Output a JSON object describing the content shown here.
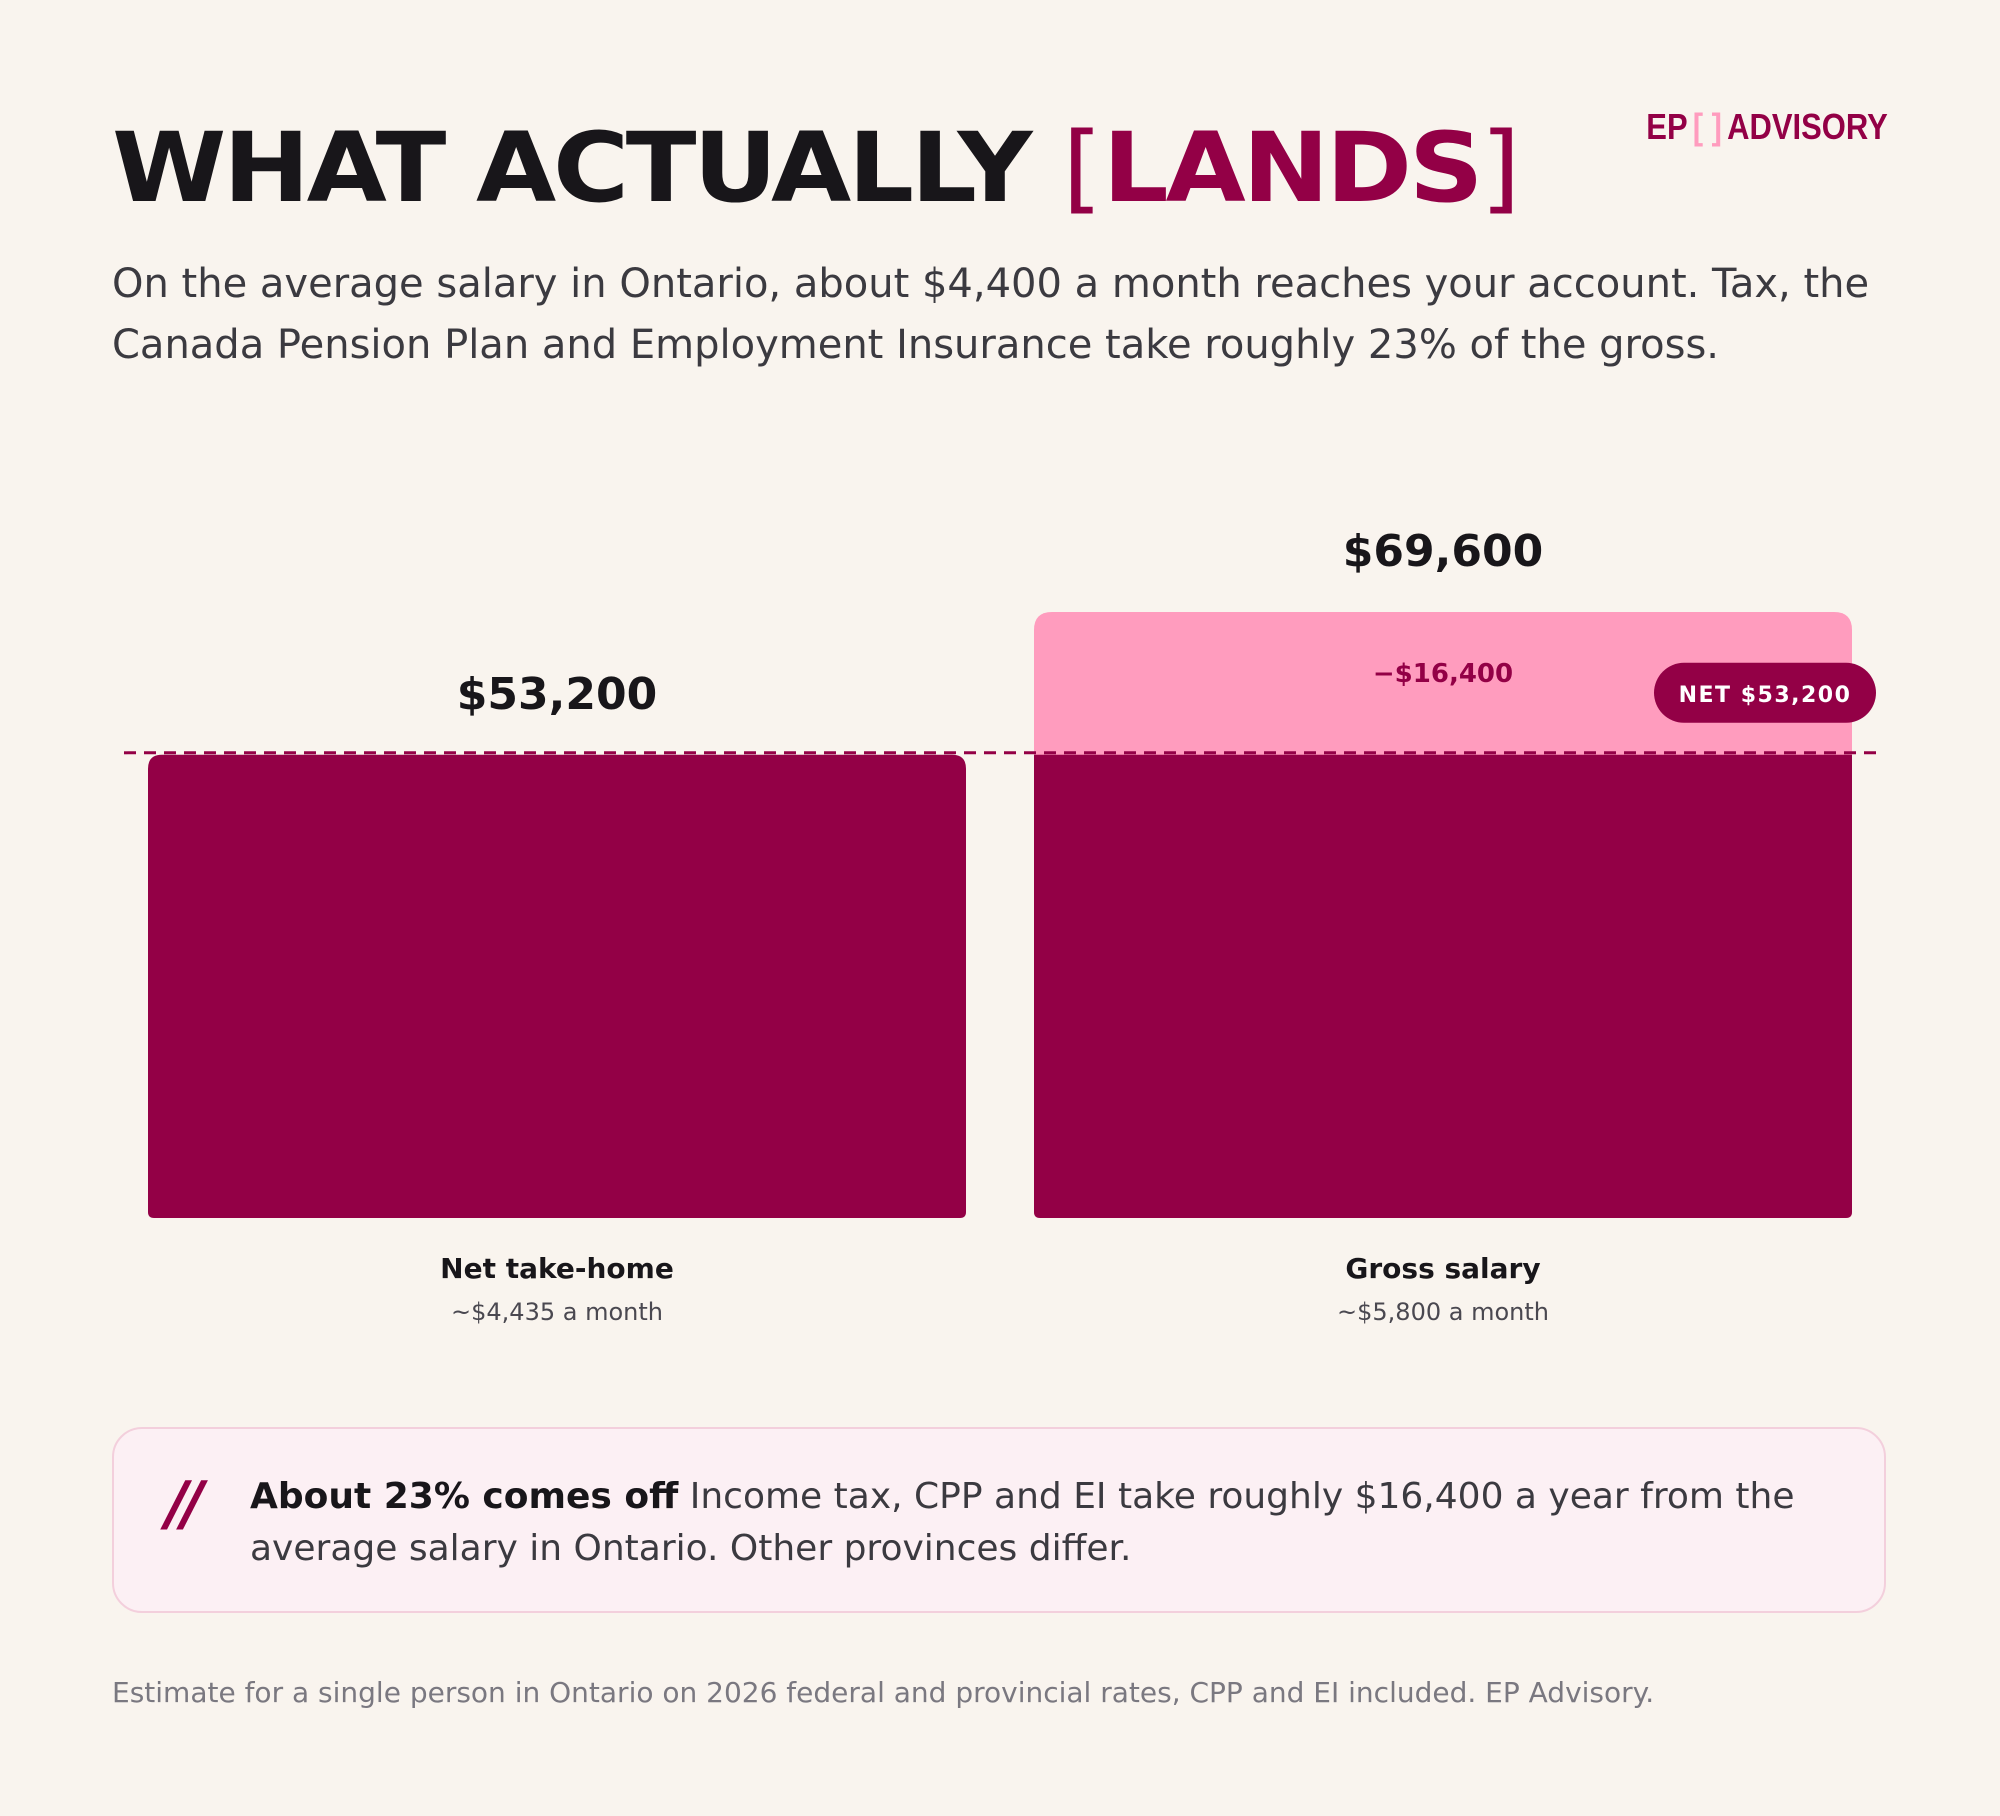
{
  "header": {
    "title_main": "WHAT ACTUALLY",
    "title_accent": "LANDS",
    "subtitle": "On the average salary in Ontario, about $4,400 a month reaches your account. Tax, the Canada Pension Plan and Employment Insurance take roughly 23% of the gross."
  },
  "brand": {
    "left": "EP",
    "right": "ADVISORY"
  },
  "colors": {
    "background": "#f9f4ee",
    "accent": "#930046",
    "deduction": "#ff9cbe",
    "text": "#18161a"
  },
  "chart_data": {
    "type": "bar",
    "categories": [
      "Net take-home",
      "Gross salary"
    ],
    "category_subtitles": [
      "~$4,435 a month",
      "~$5,800 a month"
    ],
    "values": [
      53200,
      69600
    ],
    "value_labels": [
      "$53,200",
      "$69,600"
    ],
    "stacked_on_gross": [
      {
        "name": "Net",
        "value": 53200,
        "color": "#930046"
      },
      {
        "name": "Deductions",
        "value": 16400,
        "label": "−$16,400",
        "color": "#ff9cbe"
      }
    ],
    "reference_line": {
      "value": 53200,
      "label": "NET $53,200",
      "style": "dashed"
    },
    "ylim": [
      0,
      69600
    ],
    "grid": false,
    "legend": "none"
  },
  "note": {
    "mark": "//",
    "lead": "About 23% comes off",
    "text": " Income tax, CPP and EI take roughly $16,400 a year from the average salary in Ontario. Other provinces differ."
  },
  "footnote": "Estimate for a single person in Ontario on 2026 federal and provincial rates, CPP and EI included. EP Advisory."
}
